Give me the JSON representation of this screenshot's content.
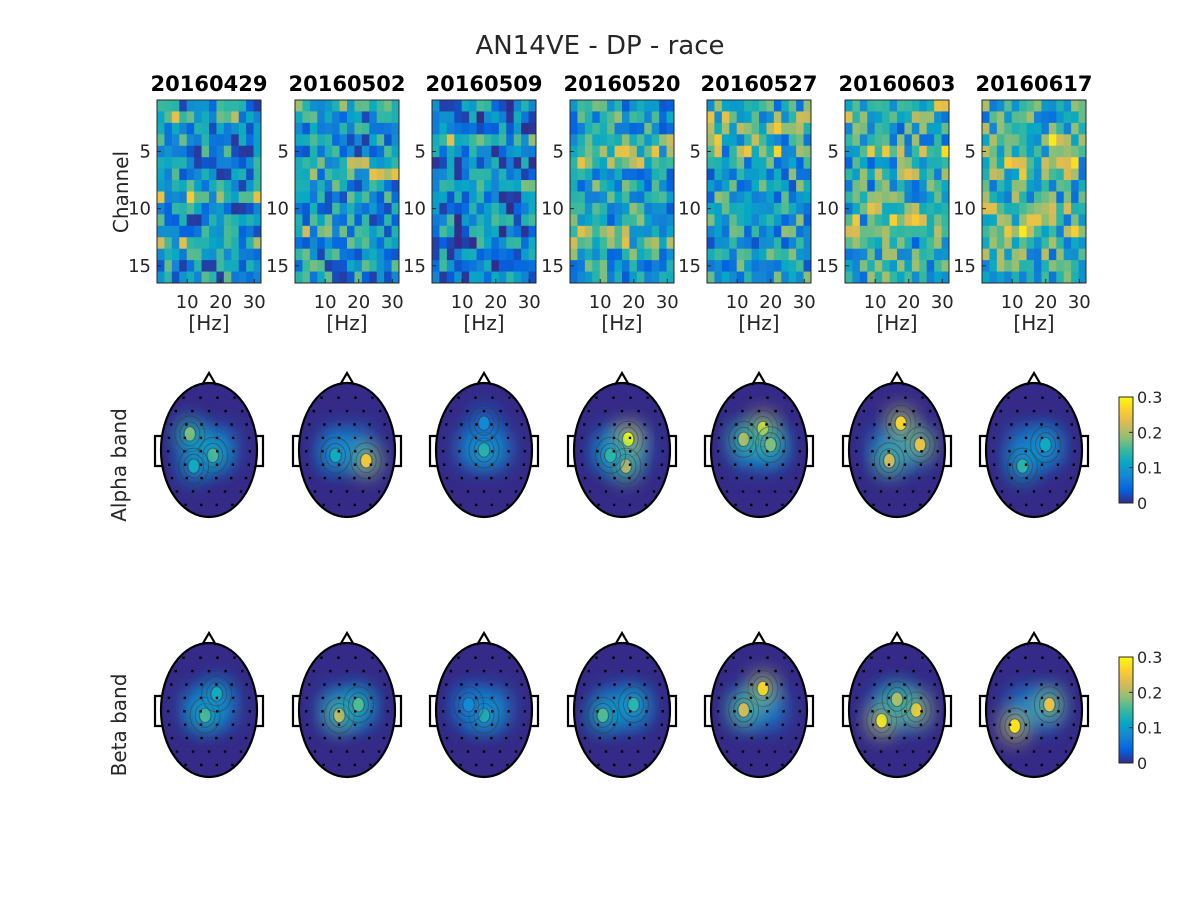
{
  "chart_data": {
    "type": "heatmap",
    "title": "AN14VE - DP - race",
    "sessions": [
      "20160429",
      "20160502",
      "20160509",
      "20160520",
      "20160527",
      "20160603",
      "20160617"
    ],
    "channel_frequency_maps": {
      "ylabel": "Channel",
      "xlabel": "[Hz]",
      "x_ticks": [
        "10",
        "20",
        "30"
      ],
      "y_ticks": [
        "5",
        "10",
        "15"
      ],
      "x_range": [
        1,
        32
      ],
      "channels": 16,
      "colormap": "parula",
      "note_estimated_levels": [
        {
          "session": "20160429",
          "mean_level": 0.4,
          "notable_rows": [
            2,
            9,
            13
          ]
        },
        {
          "session": "20160502",
          "mean_level": 0.42,
          "notable_rows": [
            1,
            6,
            7,
            12
          ]
        },
        {
          "session": "20160509",
          "mean_level": 0.35,
          "notable_rows": [
            4,
            8
          ]
        },
        {
          "session": "20160520",
          "mean_level": 0.5,
          "notable_rows": [
            4,
            5,
            6,
            12,
            13
          ]
        },
        {
          "session": "20160527",
          "mean_level": 0.48,
          "notable_rows": [
            1,
            2,
            3,
            4,
            5
          ]
        },
        {
          "session": "20160603",
          "mean_level": 0.52,
          "notable_rows": [
            1,
            2,
            5,
            7,
            10,
            11,
            12
          ]
        },
        {
          "session": "20160617",
          "mean_level": 0.58,
          "notable_rows": [
            4,
            5,
            6,
            7,
            10,
            11,
            12
          ]
        }
      ]
    },
    "topoplots": [
      {
        "band_label": "Alpha band",
        "clim": [
          0,
          0.3
        ],
        "colorbar_ticks": [
          "0",
          "0.1",
          "0.2",
          "0.3"
        ],
        "peaks": [
          [
            {
              "x": -0.25,
              "y": -0.15,
              "v": 0.18
            },
            {
              "x": 0.05,
              "y": 0.05,
              "v": 0.16
            },
            {
              "x": -0.2,
              "y": 0.15,
              "v": 0.12
            }
          ],
          [
            {
              "x": 0.25,
              "y": 0.1,
              "v": 0.25
            },
            {
              "x": -0.15,
              "y": 0.05,
              "v": 0.12
            }
          ],
          [
            {
              "x": 0.0,
              "y": 0.0,
              "v": 0.14
            },
            {
              "x": 0.0,
              "y": -0.25,
              "v": 0.08
            }
          ],
          [
            {
              "x": 0.08,
              "y": -0.1,
              "v": 0.3
            },
            {
              "x": 0.05,
              "y": 0.15,
              "v": 0.22
            },
            {
              "x": -0.15,
              "y": 0.05,
              "v": 0.14
            }
          ],
          [
            {
              "x": 0.05,
              "y": -0.2,
              "v": 0.28
            },
            {
              "x": -0.2,
              "y": -0.1,
              "v": 0.2
            },
            {
              "x": 0.15,
              "y": -0.05,
              "v": 0.18
            }
          ],
          [
            {
              "x": 0.05,
              "y": -0.25,
              "v": 0.27
            },
            {
              "x": 0.3,
              "y": -0.05,
              "v": 0.24
            },
            {
              "x": -0.1,
              "y": 0.1,
              "v": 0.22
            }
          ],
          [
            {
              "x": -0.15,
              "y": 0.15,
              "v": 0.14
            },
            {
              "x": 0.15,
              "y": -0.05,
              "v": 0.12
            }
          ]
        ]
      },
      {
        "band_label": "Beta band",
        "clim": [
          0,
          0.3
        ],
        "colorbar_ticks": [
          "0",
          "0.1",
          "0.2",
          "0.3"
        ],
        "peaks": [
          [
            {
              "x": -0.05,
              "y": 0.05,
              "v": 0.16
            },
            {
              "x": 0.1,
              "y": -0.15,
              "v": 0.12
            }
          ],
          [
            {
              "x": -0.1,
              "y": 0.05,
              "v": 0.22
            },
            {
              "x": 0.15,
              "y": -0.05,
              "v": 0.16
            }
          ],
          [
            {
              "x": 0.0,
              "y": 0.05,
              "v": 0.14
            },
            {
              "x": -0.2,
              "y": -0.05,
              "v": 0.08
            }
          ],
          [
            {
              "x": -0.25,
              "y": 0.05,
              "v": 0.16
            },
            {
              "x": 0.15,
              "y": -0.05,
              "v": 0.14
            }
          ],
          [
            {
              "x": 0.05,
              "y": -0.2,
              "v": 0.27
            },
            {
              "x": -0.2,
              "y": 0.0,
              "v": 0.22
            }
          ],
          [
            {
              "x": -0.2,
              "y": 0.1,
              "v": 0.28
            },
            {
              "x": 0.25,
              "y": 0.0,
              "v": 0.26
            },
            {
              "x": 0.0,
              "y": -0.1,
              "v": 0.2
            }
          ],
          [
            {
              "x": -0.25,
              "y": 0.15,
              "v": 0.28
            },
            {
              "x": 0.2,
              "y": -0.05,
              "v": 0.24
            }
          ]
        ]
      }
    ]
  }
}
